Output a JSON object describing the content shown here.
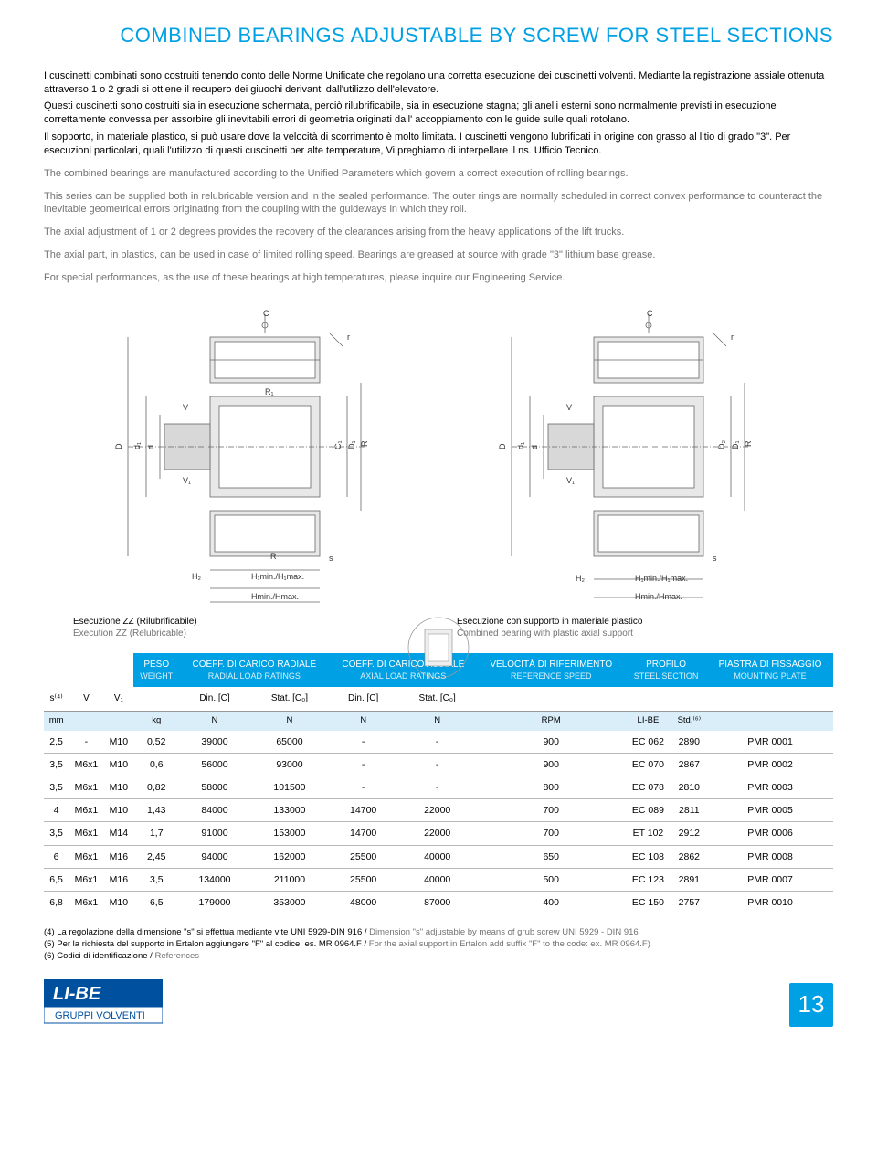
{
  "title": "COMBINED BEARINGS ADJUSTABLE BY SCREW FOR STEEL SECTIONS",
  "intro_it": [
    "I cuscinetti combinati sono costruiti tenendo conto delle Norme Unificate che regolano una corretta esecuzione dei cuscinetti volventi. Mediante la registrazione assiale ottenuta attraverso 1 o 2 gradi si ottiene il recupero dei giuochi derivanti dall'utilizzo dell'elevatore.",
    "Questi cuscinetti sono costruiti sia in esecuzione schermata, perciò rilubrificabile, sia in esecuzione stagna; gli anelli esterni sono normalmente previsti in esecuzione correttamente convessa per assorbire gli inevitabili errori di geometria originati dall' accoppiamento con le guide sulle quali rotolano.",
    "Il sopporto, in materiale plastico, si può usare dove la velocità di scorrimento è molto limitata. I cuscinetti vengono lubrificati in origine con grasso al litio di grado \"3\". Per esecuzioni particolari, quali l'utilizzo di questi cuscinetti per alte temperature, Vi preghiamo di interpellare il ns. Ufficio Tecnico."
  ],
  "intro_en": [
    "The combined bearings are manufactured according to the Unified Parameters which govern a correct execution of rolling bearings.",
    "This series can be supplied both in relubricable version and in the sealed performance. The outer rings are normally scheduled in correct convex performance to counteract the inevitable geometrical errors originating from the coupling with the guideways in which they roll.",
    "The axial adjustment of 1 or 2 degrees provides the recovery of the clearances arising from the heavy applications of the lift trucks.",
    "The axial part, in plastics, can be used in case of limited rolling speed. Bearings are greased at source with grade \"3\" lithium base grease.",
    "For special performances, as the use of these bearings at high temperatures, please inquire our Engineering Service."
  ],
  "diagram_labels": [
    "C",
    "r",
    "R",
    "R₁",
    "V",
    "D",
    "d₁",
    "d",
    "V₁",
    "C₁",
    "D₁",
    "D₂",
    "H₂",
    "H₁min./H₁max.",
    "Hmin./Hmax.",
    "s"
  ],
  "caption_left_it": "Esecuzione ZZ (Rilubrificabile)",
  "caption_left_en": "Execution ZZ (Relubricable)",
  "caption_right_it": "Esecuzione con supporto in materiale plastico",
  "caption_right_en": "Combined bearing with plastic axial support",
  "table": {
    "head_groups": [
      {
        "it": "PESO",
        "en": "WEIGHT"
      },
      {
        "it": "COEFF. DI CARICO RADIALE",
        "en": "RADIAL LOAD RATINGS"
      },
      {
        "it": "COEFF. DI CARICO ASSIALE",
        "en": "AXIAL LOAD RATINGS"
      },
      {
        "it": "VELOCITÀ DI RIFERIMENTO",
        "en": "REFERENCE SPEED"
      },
      {
        "it": "PROFILO",
        "en": "STEEL SECTION"
      },
      {
        "it": "PIASTRA DI FISSAGGIO",
        "en": "MOUNTING PLATE"
      }
    ],
    "sub": [
      "s⁽⁴⁾",
      "V",
      "V₁",
      "",
      "Din. [C]",
      "Stat. [C₀]",
      "Din. [C]",
      "Stat. [C₀]",
      "",
      "",
      "",
      ""
    ],
    "units": [
      "mm",
      "",
      "",
      "kg",
      "N",
      "N",
      "N",
      "N",
      "RPM",
      "LI-BE",
      "Std.⁽⁶⁾",
      ""
    ],
    "rows": [
      [
        "2,5",
        "-",
        "M10",
        "0,52",
        "39000",
        "65000",
        "-",
        "-",
        "900",
        "EC 062",
        "2890",
        "PMR 0001"
      ],
      [
        "3,5",
        "M6x1",
        "M10",
        "0,6",
        "56000",
        "93000",
        "-",
        "-",
        "900",
        "EC 070",
        "2867",
        "PMR 0002"
      ],
      [
        "3,5",
        "M6x1",
        "M10",
        "0,82",
        "58000",
        "101500",
        "-",
        "-",
        "800",
        "EC 078",
        "2810",
        "PMR 0003"
      ],
      [
        "4",
        "M6x1",
        "M10",
        "1,43",
        "84000",
        "133000",
        "14700",
        "22000",
        "700",
        "EC 089",
        "2811",
        "PMR 0005"
      ],
      [
        "3,5",
        "M6x1",
        "M14",
        "1,7",
        "91000",
        "153000",
        "14700",
        "22000",
        "700",
        "ET 102",
        "2912",
        "PMR 0006"
      ],
      [
        "6",
        "M6x1",
        "M16",
        "2,45",
        "94000",
        "162000",
        "25500",
        "40000",
        "650",
        "EC 108",
        "2862",
        "PMR 0008"
      ],
      [
        "6,5",
        "M6x1",
        "M16",
        "3,5",
        "134000",
        "211000",
        "25500",
        "40000",
        "500",
        "EC 123",
        "2891",
        "PMR 0007"
      ],
      [
        "6,8",
        "M6x1",
        "M10",
        "6,5",
        "179000",
        "353000",
        "48000",
        "87000",
        "400",
        "EC 150",
        "2757",
        "PMR 0010"
      ]
    ]
  },
  "footnotes": [
    {
      "it": "(4) La regolazione della dimensione \"s\" si effettua mediante vite UNI 5929-DIN 916 /",
      "en": " Dimension \"s\" adjustable by means of grub screw UNI 5929 - DIN 916"
    },
    {
      "it": "(5) Per la richiesta del supporto in Ertalon aggiungere \"F\" al codice: es. MR 0964.F /",
      "en": " For the axial support in Ertalon add suffix \"F\" to the code: ex. MR 0964.F)"
    },
    {
      "it": "(6) Codici di identificazione /",
      "en": " References"
    }
  ],
  "logo_top": "LI-BE",
  "logo_bottom": "GRUPPI VOLVENTI",
  "page_number": "13",
  "colors": {
    "brand_blue": "#00a0e4",
    "light_blue": "#d9eef9",
    "gray_text": "#727272",
    "border": "#b8b8b8"
  }
}
